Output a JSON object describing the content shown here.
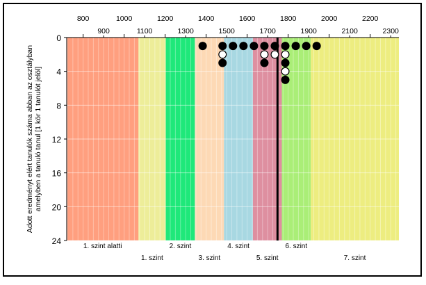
{
  "chart_data": {
    "type": "scatter",
    "ylabel_line1": "Adott eredményt elért tanulók száma abban az osztályban",
    "ylabel_line2": "amelyben a tanuló tanul [1 kör 1 tanulót jelöl]",
    "xlim": [
      720,
      2340
    ],
    "ylim": [
      0,
      24
    ],
    "y_ticks": [
      0,
      4,
      8,
      12,
      16,
      20,
      24
    ],
    "x_ticks_top_row1": [
      800,
      1000,
      1200,
      1400,
      1600,
      1800,
      2000,
      2200
    ],
    "x_ticks_top_row2": [
      900,
      1100,
      1300,
      1500,
      1700,
      1900,
      2100,
      2300
    ],
    "vertical_line_x": 1748,
    "levels": [
      {
        "label": "1. szint alatti",
        "from": 720,
        "to": 1070,
        "color": "#ff9f7f",
        "stripe": "#ffbfa8",
        "row": 1
      },
      {
        "label": "1. szint",
        "from": 1070,
        "to": 1203,
        "color": "#eded99",
        "stripe": "#f5f5c2",
        "row": 2
      },
      {
        "label": "2. szint",
        "from": 1203,
        "to": 1345,
        "color": "#1fe87a",
        "stripe": "#6cf0a8",
        "row": 1
      },
      {
        "label": "3. szint",
        "from": 1345,
        "to": 1487,
        "color": "#fdd9b5",
        "stripe": "#fde8d2",
        "row": 2
      },
      {
        "label": "4. szint",
        "from": 1487,
        "to": 1628,
        "color": "#a8d8e2",
        "stripe": "#c6e5ec",
        "row": 1
      },
      {
        "label": "5. szint",
        "from": 1628,
        "to": 1769,
        "color": "#de8fa0",
        "stripe": "#eab5c1",
        "row": 2
      },
      {
        "label": "6. szint",
        "from": 1769,
        "to": 1910,
        "color": "#aaee77",
        "stripe": "#c8f4a6",
        "row": 1
      },
      {
        "label": "7. szint",
        "from": 1910,
        "to": 2340,
        "color": "#eded80",
        "stripe": "#f4f4b0",
        "row": 2
      }
    ],
    "points": [
      {
        "x": 1383,
        "y": 1,
        "filled": true
      },
      {
        "x": 1480,
        "y": 1,
        "filled": true
      },
      {
        "x": 1480,
        "y": 2,
        "filled": false
      },
      {
        "x": 1480,
        "y": 3,
        "filled": true
      },
      {
        "x": 1531,
        "y": 1,
        "filled": true
      },
      {
        "x": 1582,
        "y": 1,
        "filled": true
      },
      {
        "x": 1633,
        "y": 1,
        "filled": true
      },
      {
        "x": 1684,
        "y": 1,
        "filled": true
      },
      {
        "x": 1684,
        "y": 2,
        "filled": false
      },
      {
        "x": 1684,
        "y": 3,
        "filled": true
      },
      {
        "x": 1735,
        "y": 1,
        "filled": true
      },
      {
        "x": 1735,
        "y": 2,
        "filled": false
      },
      {
        "x": 1786,
        "y": 1,
        "filled": true
      },
      {
        "x": 1786,
        "y": 2,
        "filled": false
      },
      {
        "x": 1786,
        "y": 3,
        "filled": true
      },
      {
        "x": 1786,
        "y": 4,
        "filled": false
      },
      {
        "x": 1786,
        "y": 5,
        "filled": true
      },
      {
        "x": 1837,
        "y": 1,
        "filled": true
      },
      {
        "x": 1888,
        "y": 1,
        "filled": true
      },
      {
        "x": 1939,
        "y": 1,
        "filled": true
      }
    ]
  }
}
